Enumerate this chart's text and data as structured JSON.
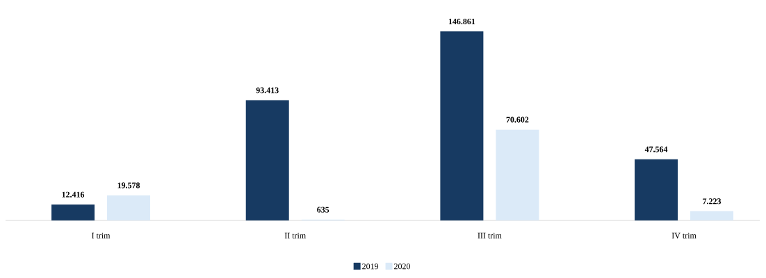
{
  "chart_data": {
    "type": "bar",
    "categories": [
      "I trim",
      "II trim",
      "III trim",
      "IV trim"
    ],
    "series": [
      {
        "name": "2019",
        "color": "#173a62",
        "values": [
          12416,
          93413,
          146861,
          47564
        ],
        "value_labels": [
          "12.416",
          "93.413",
          "146.861",
          "47.564"
        ]
      },
      {
        "name": "2020",
        "color": "#dbeaf8",
        "values": [
          19578,
          635,
          70602,
          7223
        ],
        "value_labels": [
          "19.578",
          "635",
          "70.602",
          "7.223"
        ]
      }
    ],
    "legend": "bottom"
  }
}
